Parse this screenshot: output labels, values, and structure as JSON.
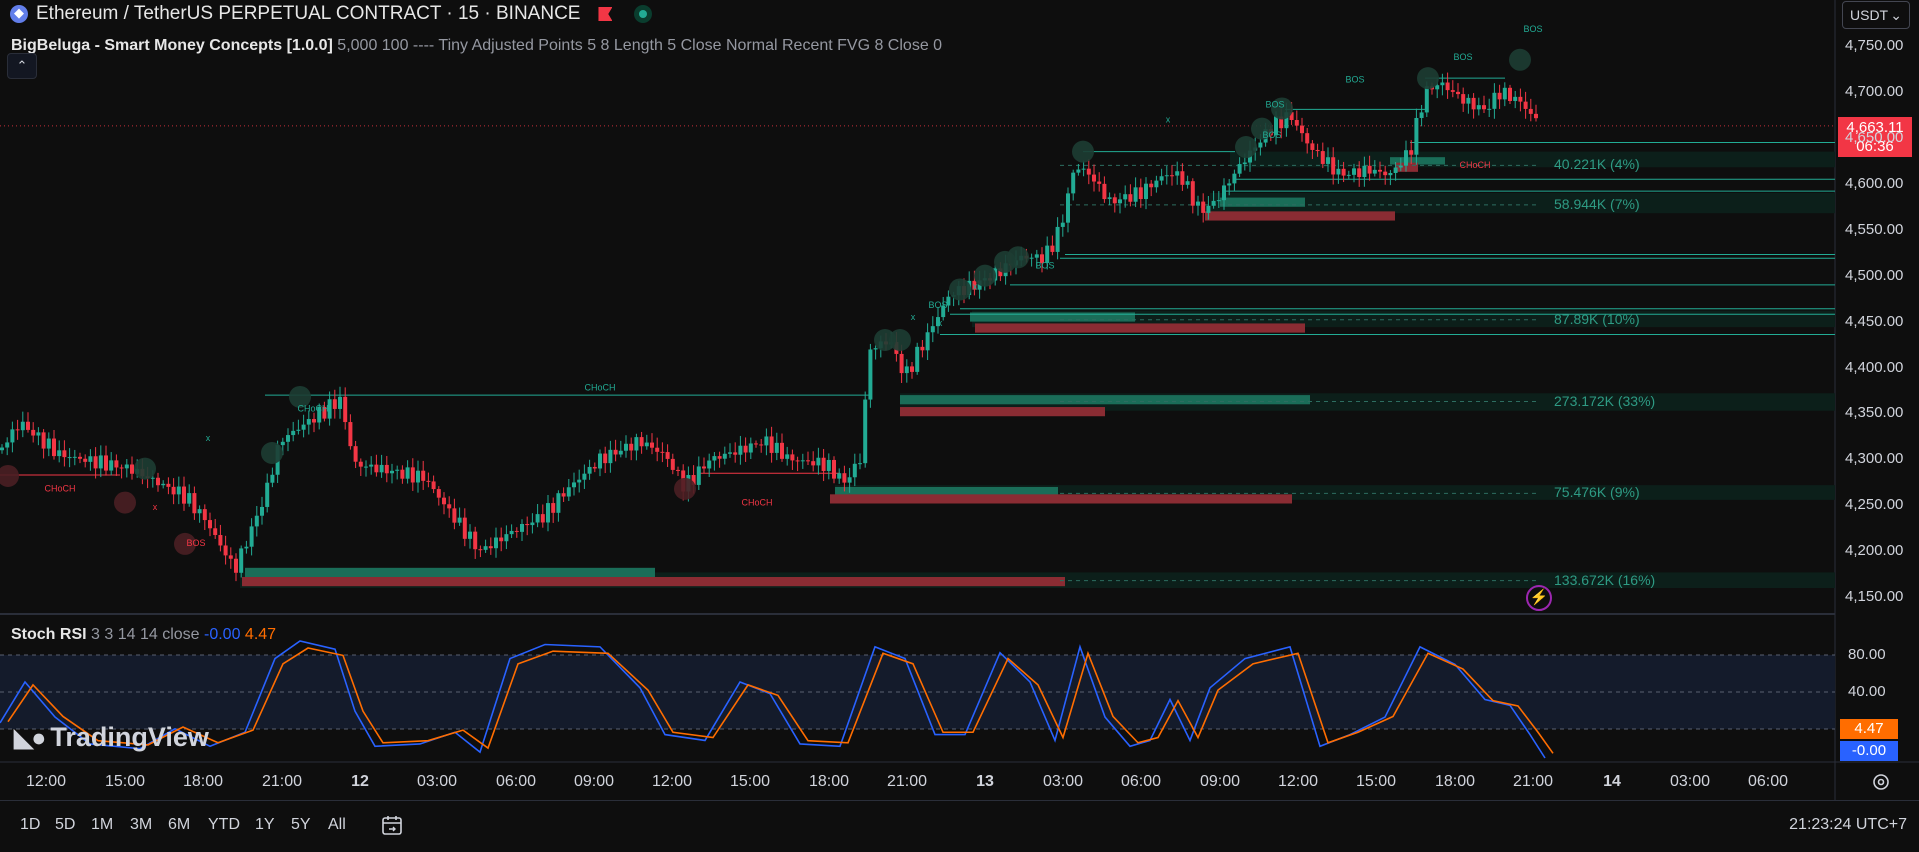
{
  "header": {
    "title": "Ethereum / TetherUS PERPETUAL CONTRACT · 15 · BINANCE",
    "currency": "USDT",
    "currency_chevron": "⌄"
  },
  "indicator": {
    "name": "BigBeluga - Smart Money Concepts [1.0.0]",
    "params": "5,000 100 ---- Tiny Adjusted Points 5 8 Length 5 Close Normal Recent FVG 8 Close 0"
  },
  "collapse_glyph": "⌃",
  "price": {
    "last": "4,663.11",
    "countdown": "06:36"
  },
  "price_axis": [
    "4,750.00",
    "4,700.00",
    "4,650.00",
    "4,600.00",
    "4,550.00",
    "4,500.00",
    "4,450.00",
    "4,400.00",
    "4,350.00",
    "4,300.00",
    "4,250.00",
    "4,200.00",
    "4,150.00"
  ],
  "volume_labels": [
    "40.221K (4%)",
    "58.944K (7%)",
    "87.89K (10%)",
    "273.172K (33%)",
    "75.476K (9%)",
    "133.672K (16%)"
  ],
  "chart_labels": {
    "bos": "BOS",
    "choch": "CHoCH",
    "x": "x"
  },
  "stoch": {
    "name": "Stoch RSI",
    "params": "3 3 14 14 close",
    "k_value": "-0.00",
    "d_value": "4.47",
    "axis": [
      "80.00",
      "40.00"
    ],
    "k_tag": "-0.00",
    "d_tag": "4.47"
  },
  "time_axis": [
    "12:00",
    "15:00",
    "18:00",
    "21:00",
    "12",
    "03:00",
    "06:00",
    "09:00",
    "12:00",
    "15:00",
    "18:00",
    "21:00",
    "13",
    "03:00",
    "06:00",
    "09:00",
    "12:00",
    "15:00",
    "18:00",
    "21:00",
    "14",
    "03:00",
    "06:00"
  ],
  "brand": "TradingView",
  "timeframes": [
    "1D",
    "5D",
    "1M",
    "3M",
    "6M",
    "YTD",
    "1Y",
    "5Y",
    "All"
  ],
  "clock": "21:23:24 UTC+7",
  "colors": {
    "up": "#22ab94",
    "down": "#f23645",
    "k": "#2962ff",
    "d": "#ff6d00",
    "bg": "#0e0e0e"
  }
}
